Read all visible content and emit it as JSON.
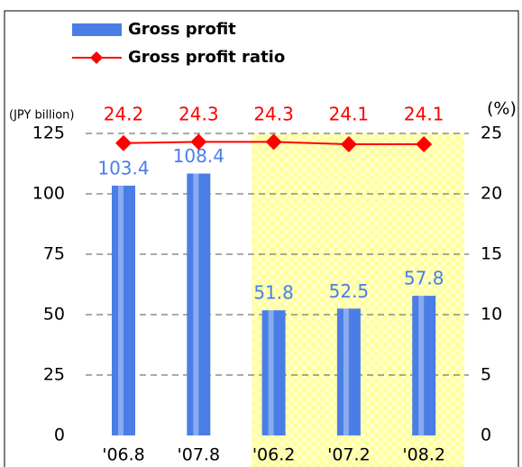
{
  "chart_data": {
    "type": "bar",
    "categories": [
      "'06.8",
      "'07.8",
      "'06.2",
      "'07.2",
      "'08.2"
    ],
    "series": [
      {
        "name": "Gross profit",
        "type": "bar",
        "color": "#4a7ee6",
        "values": [
          103.4,
          108.4,
          51.8,
          52.5,
          57.8
        ]
      },
      {
        "name": "Gross profit ratio",
        "type": "line",
        "axis": "y2",
        "color": "#ff0000",
        "values": [
          24.2,
          24.3,
          24.3,
          24.1,
          24.1
        ]
      }
    ],
    "y_label": "(JPY billion)",
    "y2_label": "(%)",
    "ylim": [
      0,
      125
    ],
    "yticks": [
      0,
      25,
      50,
      75,
      100,
      125
    ],
    "y2lim": [
      0,
      25
    ],
    "y2ticks": [
      0,
      5,
      10,
      15,
      20,
      25
    ],
    "grid": true
  }
}
